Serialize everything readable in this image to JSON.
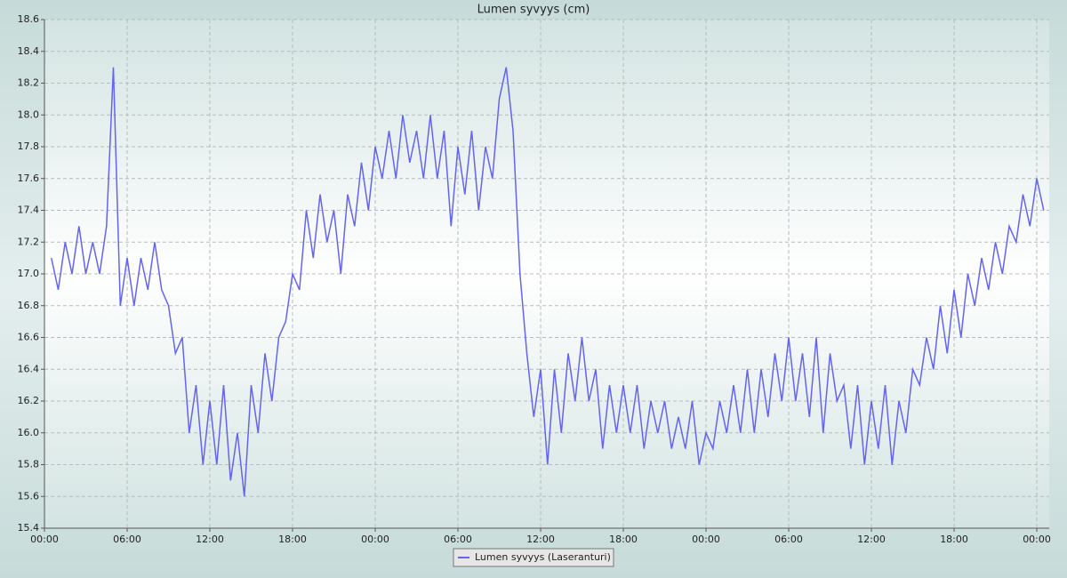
{
  "chart_data": {
    "type": "line",
    "title": "Lumen syvyys (cm)",
    "x": [
      0.5,
      1,
      1.5,
      2,
      2.5,
      3,
      3.5,
      4,
      4.5,
      5,
      5.5,
      6,
      6.5,
      7,
      7.5,
      8,
      8.5,
      9,
      9.5,
      10,
      10.5,
      11,
      11.5,
      12,
      12.5,
      13,
      13.5,
      14,
      14.5,
      15,
      15.5,
      16,
      16.5,
      17,
      17.5,
      18,
      18.5,
      19,
      19.5,
      20,
      20.5,
      21,
      21.5,
      22,
      22.5,
      23,
      23.5,
      24,
      24.5,
      25,
      25.5,
      26,
      26.5,
      27,
      27.5,
      28,
      28.5,
      29,
      29.5,
      30,
      30.5,
      31,
      31.5,
      32,
      32.5,
      33,
      33.5,
      34,
      34.5,
      35,
      35.5,
      36,
      36.5,
      37,
      37.5,
      38,
      38.5,
      39,
      39.5,
      40,
      40.5,
      41,
      41.5,
      42,
      42.5,
      43,
      43.5,
      44,
      44.5,
      45,
      45.5,
      46,
      46.5,
      47,
      47.5,
      48,
      48.5,
      49,
      49.5,
      50,
      50.5,
      51,
      51.5,
      52,
      52.5,
      53,
      53.5,
      54,
      54.5,
      55,
      55.5,
      56,
      56.5,
      57,
      57.5,
      58,
      58.5,
      59,
      59.5,
      60,
      60.5,
      61,
      61.5,
      62,
      62.5,
      63,
      63.5,
      64,
      64.5,
      65,
      65.5,
      66,
      66.5,
      67,
      67.5,
      68,
      68.5,
      69,
      69.5,
      70,
      70.5,
      71,
      71.5,
      72,
      72.5
    ],
    "series": [
      {
        "name": "Lumen syvyys (Laseranturi)",
        "color": "#6464f0",
        "values": [
          17.1,
          16.9,
          17.2,
          17.0,
          17.3,
          17.0,
          17.2,
          17.0,
          17.3,
          18.3,
          16.8,
          17.1,
          16.8,
          17.1,
          16.9,
          17.2,
          16.9,
          16.8,
          16.5,
          16.6,
          16.0,
          16.3,
          15.8,
          16.2,
          15.8,
          16.3,
          15.7,
          16.0,
          15.6,
          16.3,
          16.0,
          16.5,
          16.2,
          16.6,
          16.7,
          17.0,
          16.9,
          17.4,
          17.1,
          17.5,
          17.2,
          17.4,
          17.0,
          17.5,
          17.3,
          17.7,
          17.4,
          17.8,
          17.6,
          17.9,
          17.6,
          18.0,
          17.7,
          17.9,
          17.6,
          18.0,
          17.6,
          17.9,
          17.3,
          17.8,
          17.5,
          17.9,
          17.4,
          17.8,
          17.6,
          18.1,
          18.3,
          17.9,
          17.0,
          16.5,
          16.1,
          16.4,
          15.8,
          16.4,
          16.0,
          16.5,
          16.2,
          16.6,
          16.2,
          16.4,
          15.9,
          16.3,
          16.0,
          16.3,
          16.0,
          16.3,
          15.9,
          16.2,
          16.0,
          16.2,
          15.9,
          16.1,
          15.9,
          16.2,
          15.8,
          16.0,
          15.9,
          16.2,
          16.0,
          16.3,
          16.0,
          16.4,
          16.0,
          16.4,
          16.1,
          16.5,
          16.2,
          16.6,
          16.2,
          16.5,
          16.1,
          16.6,
          16.0,
          16.5,
          16.2,
          16.3,
          15.9,
          16.3,
          15.8,
          16.2,
          15.9,
          16.3,
          15.8,
          16.2,
          16.0,
          16.4,
          16.3,
          16.6,
          16.4,
          16.8,
          16.5,
          16.9,
          16.6,
          17.0,
          16.8,
          17.1,
          16.9,
          17.2,
          17.0,
          17.3,
          17.2,
          17.5,
          17.3,
          17.6,
          17.4
        ]
      }
    ],
    "xlim": [
      0,
      72.9
    ],
    "xticks": [
      {
        "value": 0,
        "label": "00:00"
      },
      {
        "value": 6,
        "label": "06:00"
      },
      {
        "value": 12,
        "label": "12:00"
      },
      {
        "value": 18,
        "label": "18:00"
      },
      {
        "value": 24,
        "label": "00:00"
      },
      {
        "value": 30,
        "label": "06:00"
      },
      {
        "value": 36,
        "label": "12:00"
      },
      {
        "value": 42,
        "label": "18:00"
      },
      {
        "value": 48,
        "label": "00:00"
      },
      {
        "value": 54,
        "label": "06:00"
      },
      {
        "value": 60,
        "label": "12:00"
      },
      {
        "value": 66,
        "label": "18:00"
      },
      {
        "value": 72,
        "label": "00:00"
      }
    ],
    "ylim": [
      15.4,
      18.6
    ],
    "yticks": [
      15.4,
      15.6,
      15.8,
      {
        "value": 16,
        "label": "16.0"
      },
      16.2,
      16.4,
      16.6,
      16.8,
      {
        "value": 17,
        "label": "17.0"
      },
      17.2,
      17.4,
      17.6,
      17.8,
      {
        "value": 18,
        "label": "18.0"
      },
      18.2,
      18.4,
      18.6
    ],
    "grid": true
  }
}
